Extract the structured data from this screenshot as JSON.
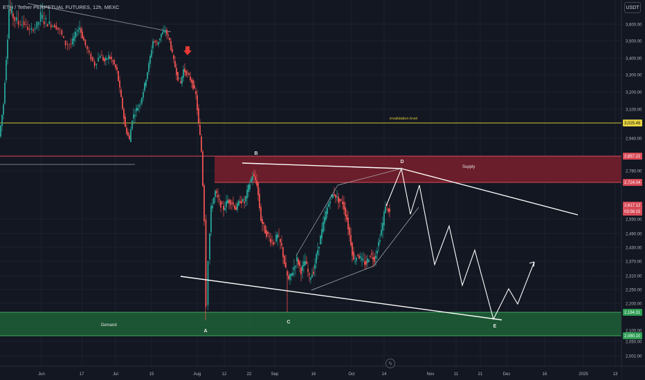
{
  "header": {
    "symbol_line": "ETH / Tether PERPETUAL FUTURES, 12h, MEXC",
    "currency_button": "USDT"
  },
  "colors": {
    "background": "#131722",
    "up": "#26a69a",
    "down": "#ef5350",
    "supply_zone": "#7a1f2b",
    "demand_zone": "#1e5c35",
    "invalidation": "#d6c43a",
    "pattern_lines": "#ffffff",
    "red_arrow": "#e53935"
  },
  "annotations": {
    "supply_label": "Supply",
    "demand_label": "Demand",
    "invalidation_label": "invalidation level",
    "wave_labels": [
      "A",
      "B",
      "C",
      "D",
      "E"
    ]
  },
  "icons": {
    "down_arrow": "arrow-down-icon",
    "replay": "flash-icon"
  },
  "chart_data": {
    "type": "candlestick",
    "title": "ETH / Tether PERPETUAL FUTURES, 12h, MEXC",
    "x_ticks": [
      "Jun",
      "17",
      "Jul",
      "15",
      "Aug",
      "12",
      "22",
      "Sep",
      "16",
      "Oct",
      "14",
      "Nov",
      "11",
      "21",
      "Dec",
      "16",
      "2025",
      "13"
    ],
    "y_ticks": [
      3600,
      3500,
      3400,
      3300,
      3200,
      3100,
      2940,
      2780,
      2550,
      2490,
      2430,
      2370,
      2310,
      2250,
      2200,
      2100,
      2050,
      2002
    ],
    "y_range": [
      1980,
      3680
    ],
    "price_labels": [
      {
        "name": "invalidation",
        "text": "3,025.46",
        "value": 3025.46
      },
      {
        "name": "supply-top",
        "text": "2,857.22",
        "value": 2857.22
      },
      {
        "name": "supply-bottom",
        "text": "2,724.04",
        "value": 2724.04
      },
      {
        "name": "last-price",
        "text": "2,617.12",
        "value": 2617.12,
        "countdown": "03:56:15"
      },
      {
        "name": "demand-top",
        "text": "2,164.31",
        "value": 2164.31
      },
      {
        "name": "demand-bottom",
        "text": "2,080.10",
        "value": 2080.1
      }
    ],
    "zones": [
      {
        "name": "Supply",
        "from": 2724.04,
        "to": 2857.22
      },
      {
        "name": "Demand",
        "from": 2080.1,
        "to": 2164.31
      }
    ],
    "invalidation_level": 3025.46,
    "waves": [
      {
        "label": "A",
        "price": 2130
      },
      {
        "label": "B",
        "price": 2825
      },
      {
        "label": "C",
        "price": 2140
      },
      {
        "label": "D",
        "price": 2790
      },
      {
        "label": "E",
        "price": 2140
      }
    ],
    "path": [
      [
        0,
        2950
      ],
      [
        6,
        3130
      ],
      [
        10,
        3400
      ],
      [
        14,
        3640
      ],
      [
        20,
        3620
      ],
      [
        28,
        3600
      ],
      [
        36,
        3600
      ],
      [
        44,
        3560
      ],
      [
        52,
        3580
      ],
      [
        60,
        3620
      ],
      [
        70,
        3600
      ],
      [
        80,
        3590
      ],
      [
        88,
        3560
      ],
      [
        96,
        3480
      ],
      [
        104,
        3480
      ],
      [
        110,
        3540
      ],
      [
        116,
        3580
      ],
      [
        122,
        3500
      ],
      [
        130,
        3420
      ],
      [
        138,
        3360
      ],
      [
        146,
        3420
      ],
      [
        152,
        3380
      ],
      [
        158,
        3410
      ],
      [
        164,
        3380
      ],
      [
        170,
        3320
      ],
      [
        176,
        3160
      ],
      [
        182,
        3000
      ],
      [
        188,
        2930
      ],
      [
        192,
        3050
      ],
      [
        198,
        3100
      ],
      [
        204,
        3140
      ],
      [
        210,
        3240
      ],
      [
        216,
        3360
      ],
      [
        222,
        3500
      ],
      [
        228,
        3480
      ],
      [
        234,
        3540
      ],
      [
        240,
        3560
      ],
      [
        246,
        3500
      ],
      [
        252,
        3380
      ],
      [
        258,
        3280
      ],
      [
        262,
        3250
      ],
      [
        266,
        3330
      ],
      [
        272,
        3300
      ],
      [
        278,
        3260
      ],
      [
        284,
        3180
      ],
      [
        288,
        3020
      ],
      [
        292,
        2880
      ],
      [
        296,
        2550
      ],
      [
        299,
        2200
      ],
      [
        302,
        2380
      ],
      [
        306,
        2600
      ],
      [
        312,
        2680
      ],
      [
        318,
        2630
      ],
      [
        324,
        2600
      ],
      [
        330,
        2640
      ],
      [
        336,
        2630
      ],
      [
        342,
        2600
      ],
      [
        348,
        2640
      ],
      [
        354,
        2630
      ],
      [
        360,
        2700
      ],
      [
        366,
        2760
      ],
      [
        372,
        2720
      ],
      [
        378,
        2550
      ],
      [
        384,
        2500
      ],
      [
        390,
        2470
      ],
      [
        396,
        2450
      ],
      [
        402,
        2480
      ],
      [
        408,
        2430
      ],
      [
        414,
        2330
      ],
      [
        418,
        2290
      ],
      [
        424,
        2330
      ],
      [
        430,
        2380
      ],
      [
        436,
        2330
      ],
      [
        442,
        2370
      ],
      [
        448,
        2300
      ],
      [
        454,
        2330
      ],
      [
        460,
        2420
      ],
      [
        466,
        2500
      ],
      [
        472,
        2580
      ],
      [
        478,
        2650
      ],
      [
        484,
        2670
      ],
      [
        490,
        2640
      ],
      [
        496,
        2630
      ],
      [
        502,
        2550
      ],
      [
        508,
        2450
      ],
      [
        512,
        2370
      ],
      [
        518,
        2400
      ],
      [
        524,
        2370
      ],
      [
        530,
        2360
      ],
      [
        536,
        2400
      ],
      [
        542,
        2380
      ],
      [
        548,
        2450
      ],
      [
        554,
        2530
      ],
      [
        558,
        2620
      ],
      [
        564,
        2580
      ]
    ],
    "projection": [
      [
        2617,
        "start"
      ],
      [
        2790,
        "D"
      ],
      [
        2600
      ],
      [
        2720
      ],
      [
        2370
      ],
      [
        2520
      ],
      [
        2290
      ],
      [
        2430
      ],
      [
        2170,
        "E"
      ],
      [
        2245
      ],
      [
        2210
      ],
      [
        2370
      ]
    ]
  }
}
